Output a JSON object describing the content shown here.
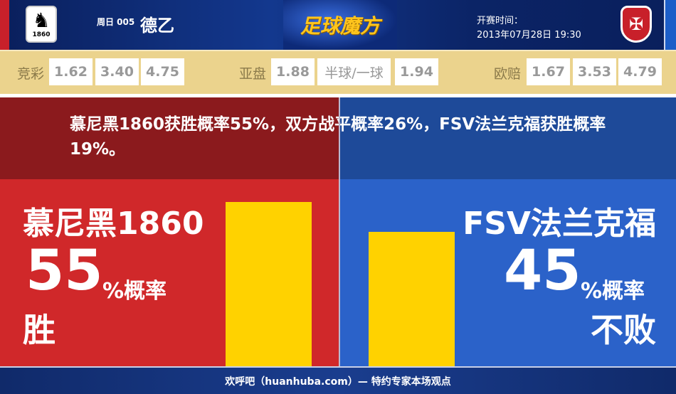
{
  "header": {
    "round": "周日 005",
    "league": "德乙",
    "brand": "足球魔方",
    "time_label": "开赛时间：",
    "time_value": "2013年07月28日 19:30",
    "home_logo_text": "1860",
    "home_logo_icon": "lion-crest-icon",
    "away_logo_icon": "eagle-crest-icon"
  },
  "odds": {
    "jingcai": {
      "label": "竞彩",
      "values": [
        "1.62",
        "3.40",
        "4.75"
      ]
    },
    "yapan": {
      "label": "亚盘",
      "values": [
        "1.88",
        "半球/一球",
        "1.94"
      ]
    },
    "oupei": {
      "label": "欧赔",
      "values": [
        "1.67",
        "3.53",
        "4.79"
      ]
    }
  },
  "summary": "慕尼黑1860获胜概率55%，双方战平概率26%，FSV法兰克福获胜概率19%。",
  "home": {
    "name": "慕尼黑1860",
    "percent": "55",
    "suffix": "%概率",
    "outcome": "胜",
    "value": 55,
    "color": "#d0282a"
  },
  "away": {
    "name": "FSV法兰克福",
    "percent": "45",
    "suffix": "%概率",
    "outcome": "不败",
    "value": 45,
    "color": "#2b62c9"
  },
  "bar_color": "#ffd200",
  "footer": "欢呼吧（huanhuba.com）— 特约专家本场观点"
}
